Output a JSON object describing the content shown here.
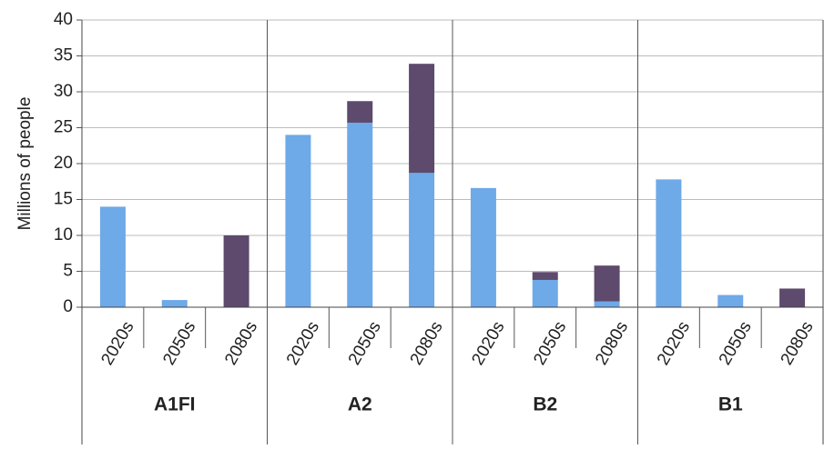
{
  "chart_data": {
    "type": "stacked-bar",
    "ylabel": "Millions of people",
    "groups": [
      "A1FI",
      "A2",
      "B2",
      "B1"
    ],
    "categories": [
      "2020s",
      "2050s",
      "2080s",
      "2020s",
      "2050s",
      "2080s",
      "2020s",
      "2050s",
      "2080s",
      "2020s",
      "2050s",
      "2080s"
    ],
    "series": [
      {
        "color": "#6ea9e8",
        "values": [
          14,
          1,
          0,
          24,
          25.7,
          18.7,
          16.6,
          3.8,
          0.8,
          17.8,
          1.7,
          0
        ]
      },
      {
        "color": "#5d4a6d",
        "values": [
          0,
          0,
          10,
          0,
          3,
          15.2,
          0,
          1.1,
          5,
          0,
          0,
          2.6
        ]
      }
    ],
    "ylim": [
      0,
      40
    ],
    "yticks": [
      0,
      5,
      10,
      15,
      20,
      25,
      30,
      35,
      40
    ],
    "grid": true
  }
}
